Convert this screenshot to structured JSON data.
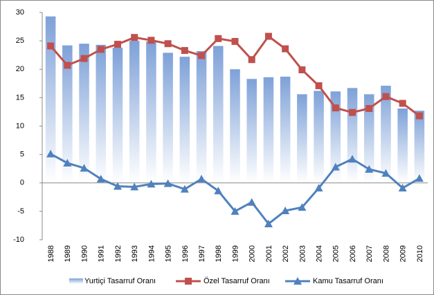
{
  "chart_data": {
    "type": "bar-line",
    "categories": [
      "1988",
      "1989",
      "1990",
      "1991",
      "1992",
      "1993",
      "1994",
      "1995",
      "1996",
      "1997",
      "1998",
      "1999",
      "2000",
      "2001",
      "2002",
      "2003",
      "2004",
      "2005",
      "2006",
      "2007",
      "2008",
      "2009",
      "2010"
    ],
    "series": [
      {
        "name": "Yurtiçi Tasarruf Oranı",
        "type": "bar",
        "color": "#7ea1d8",
        "values": [
          29.3,
          24.2,
          24.5,
          24.3,
          23.8,
          25.0,
          24.9,
          22.9,
          22.2,
          23.2,
          24.1,
          20.0,
          18.3,
          18.6,
          18.7,
          15.6,
          16.2,
          16.1,
          16.7,
          15.6,
          17.1,
          13.1,
          12.7
        ]
      },
      {
        "name": "Özel Tasarruf Oranı",
        "type": "line",
        "marker": "square",
        "color": "#c0504d",
        "values": [
          24.1,
          20.7,
          21.9,
          23.5,
          24.4,
          25.6,
          25.1,
          24.5,
          23.3,
          22.4,
          25.4,
          24.9,
          21.7,
          25.8,
          23.6,
          19.9,
          17.1,
          13.2,
          12.4,
          13.1,
          15.2,
          14.0,
          11.8
        ]
      },
      {
        "name": "Kamu Tasarruf Oranı",
        "type": "line",
        "marker": "triangle",
        "color": "#4f81bd",
        "values": [
          5.1,
          3.5,
          2.6,
          0.7,
          -0.6,
          -0.7,
          -0.2,
          -0.1,
          -1.1,
          0.7,
          -1.4,
          -5.0,
          -3.4,
          -7.2,
          -4.9,
          -4.3,
          -0.9,
          2.8,
          4.2,
          2.4,
          1.7,
          -0.9,
          0.8
        ]
      }
    ],
    "ylim": [
      -10,
      30
    ],
    "yticks": [
      -10,
      -5,
      0,
      5,
      10,
      15,
      20,
      25,
      30
    ],
    "legend": "bottom"
  }
}
